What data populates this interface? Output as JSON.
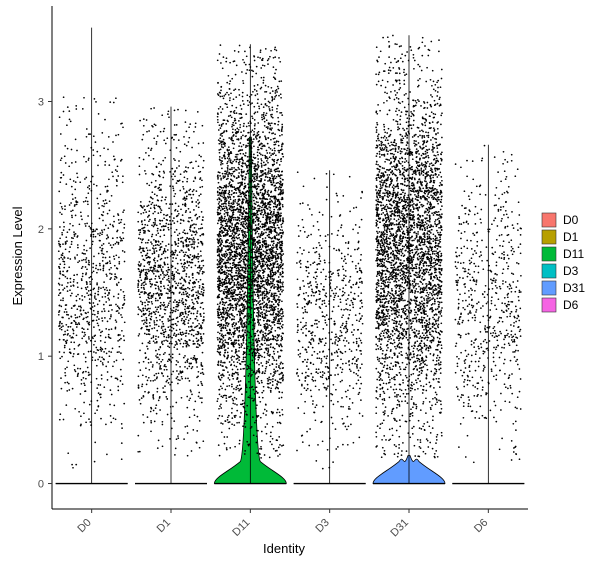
{
  "chart_data": {
    "type": "violin",
    "xlabel": "Identity",
    "ylabel": "Expression Level",
    "categories": [
      "D0",
      "D1",
      "D11",
      "D3",
      "D31",
      "D6"
    ],
    "ylim": [
      -0.2,
      3.75
    ],
    "yticks": [
      0,
      1,
      2,
      3
    ],
    "legend_position": "right",
    "colors": {
      "D0": "#F8766D",
      "D1": "#B79F00",
      "D11": "#00BA38",
      "D3": "#00BFC4",
      "D31": "#619CFF",
      "D6": "#F564E3"
    },
    "series": [
      {
        "name": "D0",
        "max": 3.58,
        "zero_fraction": 0.97,
        "point_count": 850,
        "positive_range": [
          0.1,
          3.05
        ]
      },
      {
        "name": "D1",
        "max": 2.96,
        "zero_fraction": 0.97,
        "point_count": 1500,
        "positive_range": [
          0.2,
          2.95
        ]
      },
      {
        "name": "D11",
        "max": 3.45,
        "zero_fraction": 0.93,
        "point_count": 4200,
        "positive_range": [
          0.2,
          3.45
        ]
      },
      {
        "name": "D3",
        "max": 2.46,
        "zero_fraction": 0.98,
        "point_count": 650,
        "positive_range": [
          0.1,
          2.46
        ]
      },
      {
        "name": "D31",
        "max": 3.52,
        "zero_fraction": 0.92,
        "point_count": 3600,
        "positive_range": [
          0.2,
          3.52
        ]
      },
      {
        "name": "D6",
        "max": 2.66,
        "zero_fraction": 0.98,
        "point_count": 620,
        "positive_range": [
          0.15,
          2.66
        ]
      }
    ]
  }
}
